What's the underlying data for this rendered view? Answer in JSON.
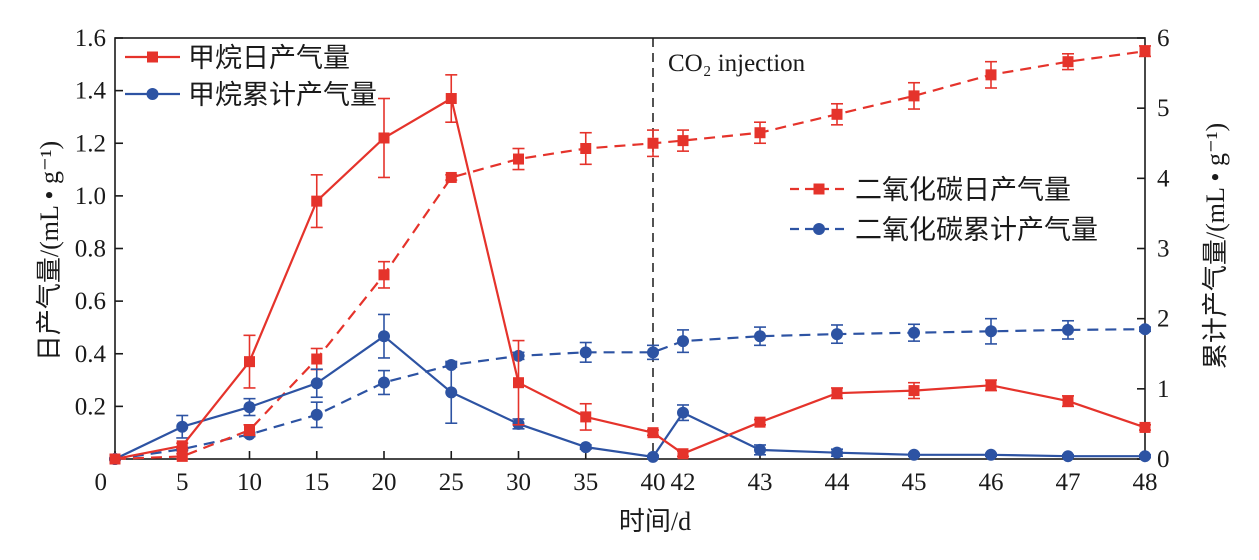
{
  "chart_data": {
    "type": "line",
    "xlabel": "时间/d",
    "ylabel": "日产气量/(mL • g⁻¹)",
    "y2label": "累计产气量/(mL • g⁻¹)",
    "x": [
      0,
      5,
      10,
      15,
      20,
      25,
      30,
      35,
      40,
      42,
      43,
      44,
      45,
      46,
      47,
      48
    ],
    "xticks": [
      "0",
      "5",
      "10",
      "15",
      "20",
      "25",
      "30",
      "35",
      "40",
      "42",
      "43",
      "44",
      "45",
      "46",
      "47",
      "48"
    ],
    "ylim": [
      0,
      1.6
    ],
    "yticks": [
      "0.2",
      "0.4",
      "0.6",
      "0.8",
      "1.0",
      "1.2",
      "1.4",
      "1.6"
    ],
    "y2lim": [
      0,
      6
    ],
    "y2ticks": [
      "0",
      "1",
      "2",
      "3",
      "4",
      "5",
      "6"
    ],
    "grid": false,
    "series": [
      {
        "name": "甲烷日产气量",
        "color": "#e5332b",
        "dashed": false,
        "right_axis": false,
        "marker": "square",
        "values": [
          0,
          0.05,
          0.37,
          0.98,
          1.22,
          1.37,
          0.29,
          0.16,
          0.1,
          0.02,
          0.14,
          0.25,
          0.26,
          0.28,
          0.22,
          0.12
        ],
        "errors": [
          0,
          0.01,
          0.1,
          0.1,
          0.15,
          0.09,
          0.16,
          0.05,
          0.01,
          0.01,
          0.01,
          0.02,
          0.03,
          0.02,
          0.02,
          0.01
        ]
      },
      {
        "name": "甲烷累计产气量",
        "color": "#2d53a3",
        "dashed": false,
        "right_axis": true,
        "marker": "circle",
        "values": [
          0,
          0.46,
          0.74,
          1.08,
          1.75,
          0.95,
          0.5,
          0.17,
          0.03,
          0.66,
          0.13,
          0.09,
          0.06,
          0.06,
          0.04,
          0.04
        ],
        "errors": [
          0,
          0.16,
          0.12,
          0.2,
          0.31,
          0.44,
          0.07,
          0.03,
          0.02,
          0.11,
          0.07,
          0.05,
          0.02,
          0.02,
          0.02,
          0.02
        ]
      },
      {
        "name": "二氧化碳日产气量",
        "color": "#e5332b",
        "dashed": true,
        "right_axis": false,
        "marker": "square",
        "values": [
          0,
          0.01,
          0.11,
          0.38,
          0.7,
          1.07,
          1.14,
          1.18,
          1.2,
          1.21,
          1.24,
          1.31,
          1.38,
          1.46,
          1.51,
          1.55
        ],
        "errors": [
          0,
          0.01,
          0.02,
          0.04,
          0.05,
          0.01,
          0.04,
          0.06,
          0.05,
          0.04,
          0.04,
          0.04,
          0.05,
          0.05,
          0.03,
          0.02
        ]
      },
      {
        "name": "二氧化碳累计产气量",
        "color": "#2d53a3",
        "dashed": true,
        "right_axis": true,
        "marker": "circle",
        "values": [
          0,
          0.14,
          0.35,
          0.63,
          1.09,
          1.34,
          1.47,
          1.52,
          1.52,
          1.68,
          1.75,
          1.78,
          1.8,
          1.82,
          1.84,
          1.85
        ],
        "errors": [
          0,
          0.02,
          0.03,
          0.18,
          0.17,
          0.03,
          0.05,
          0.14,
          0.1,
          0.16,
          0.13,
          0.13,
          0.12,
          0.18,
          0.13,
          0.03
        ]
      }
    ],
    "annotations": [
      {
        "text": "CO₂ injection",
        "x": 40
      }
    ],
    "legends": [
      {
        "placement": "top-left",
        "series": [
          0,
          1
        ]
      },
      {
        "placement": "center-right",
        "series": [
          2,
          3
        ]
      }
    ]
  }
}
